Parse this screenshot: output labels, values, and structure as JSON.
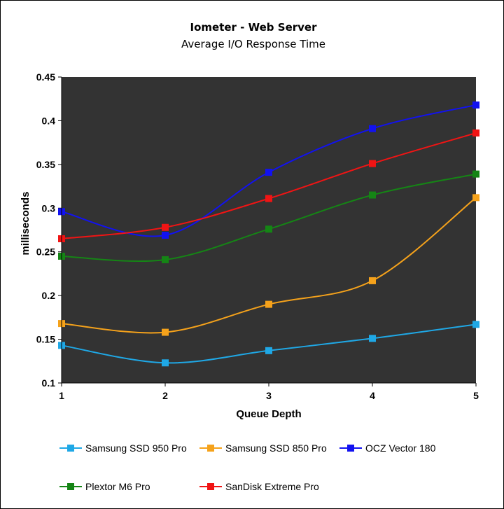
{
  "chart_data": {
    "type": "line",
    "title": "Iometer - Web Server",
    "subtitle": "Average I/O Response Time",
    "xlabel": "Queue Depth",
    "ylabel": "milliseconds",
    "x": [
      1,
      2,
      3,
      4,
      5
    ],
    "xlim": [
      1,
      5
    ],
    "ylim": [
      0.1,
      0.45
    ],
    "yticks": [
      "0.1",
      "0.15",
      "0.2",
      "0.25",
      "0.3",
      "0.35",
      "0.4",
      "0.45"
    ],
    "xticks": [
      "1",
      "2",
      "3",
      "4",
      "5"
    ],
    "grid": false,
    "plot_background": "#333333",
    "legend_position": "bottom",
    "series": [
      {
        "name": "Samsung SSD 950 Pro",
        "color": "#1fa8e6",
        "values": [
          0.143,
          0.123,
          0.137,
          0.151,
          0.167
        ]
      },
      {
        "name": "Samsung SSD 850 Pro",
        "color": "#f5a21b",
        "values": [
          0.168,
          0.158,
          0.19,
          0.217,
          0.312
        ]
      },
      {
        "name": "OCZ Vector 180",
        "color": "#1212f0",
        "values": [
          0.296,
          0.269,
          0.341,
          0.391,
          0.418
        ]
      },
      {
        "name": "Plextor M6 Pro",
        "color": "#158515",
        "values": [
          0.245,
          0.241,
          0.276,
          0.315,
          0.339
        ]
      },
      {
        "name": "SanDisk Extreme Pro",
        "color": "#f01414",
        "values": [
          0.265,
          0.278,
          0.311,
          0.351,
          0.386
        ]
      }
    ]
  }
}
